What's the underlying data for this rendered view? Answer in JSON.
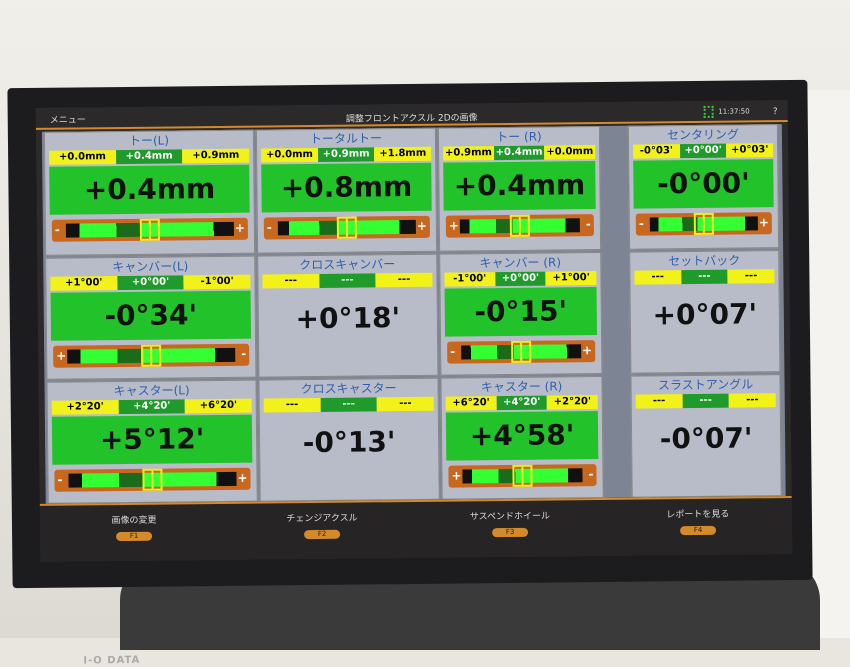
{
  "topbar": {
    "menu": "メニュー",
    "title": "調整フロントアクスル 2Dの画像",
    "time": "11:37:50",
    "help": "?"
  },
  "panels": [
    {
      "title": "トー(L)",
      "ranges": [
        "+0.0mm",
        "+0.4mm",
        "+0.9mm"
      ],
      "value": "+0.4mm",
      "gauge": [
        "-",
        "+"
      ],
      "state": "green"
    },
    {
      "title": "トータルトー",
      "ranges": [
        "+0.0mm",
        "+0.9mm",
        "+1.8mm"
      ],
      "value": "+0.8mm",
      "gauge": [
        "-",
        "+"
      ],
      "state": "green"
    },
    {
      "title": "トー (R)",
      "ranges": [
        "+0.9mm",
        "+0.4mm",
        "+0.0mm"
      ],
      "value": "+0.4mm",
      "gauge": [
        "+",
        "-"
      ],
      "state": "green"
    },
    {
      "title": "センタリング",
      "ranges": [
        "-0°03'",
        "+0°00'",
        "+0°03'"
      ],
      "value": "-0°00'",
      "gauge": [
        "-",
        "+"
      ],
      "state": "green"
    },
    {
      "title": "キャンバー(L)",
      "ranges": [
        "+1°00'",
        "+0°00'",
        "-1°00'"
      ],
      "value": "-0°34'",
      "gauge": [
        "+",
        "-"
      ],
      "state": "green"
    },
    {
      "title": "クロスキャンバー",
      "ranges": [
        "---",
        "---",
        "---"
      ],
      "value": "+0°18'",
      "gauge": null,
      "state": "gray"
    },
    {
      "title": "キャンバー (R)",
      "ranges": [
        "-1°00'",
        "+0°00'",
        "+1°00'"
      ],
      "value": "-0°15'",
      "gauge": [
        "-",
        "+"
      ],
      "state": "green"
    },
    {
      "title": "セットバック",
      "ranges": [
        "---",
        "---",
        "---"
      ],
      "value": "+0°07'",
      "gauge": null,
      "state": "gray"
    },
    {
      "title": "キャスター(L)",
      "ranges": [
        "+2°20'",
        "+4°20'",
        "+6°20'"
      ],
      "value": "+5°12'",
      "gauge": [
        "-",
        "+"
      ],
      "state": "green"
    },
    {
      "title": "クロスキャスター",
      "ranges": [
        "---",
        "---",
        "---"
      ],
      "value": "-0°13'",
      "gauge": null,
      "state": "gray"
    },
    {
      "title": "キャスター (R)",
      "ranges": [
        "+6°20'",
        "+4°20'",
        "+2°20'"
      ],
      "value": "+4°58'",
      "gauge": [
        "+",
        "-"
      ],
      "state": "green"
    },
    {
      "title": "スラストアングル",
      "ranges": [
        "---",
        "---",
        "---"
      ],
      "value": "-0°07'",
      "gauge": null,
      "state": "gray"
    }
  ],
  "footer": [
    {
      "label": "画像の変更",
      "key": "F1"
    },
    {
      "label": "チェンジアクスル",
      "key": "F2"
    },
    {
      "label": "サスペンドホイール",
      "key": "F3"
    },
    {
      "label": "レポートを見る",
      "key": "F4"
    }
  ],
  "brand": "I-O DATA"
}
